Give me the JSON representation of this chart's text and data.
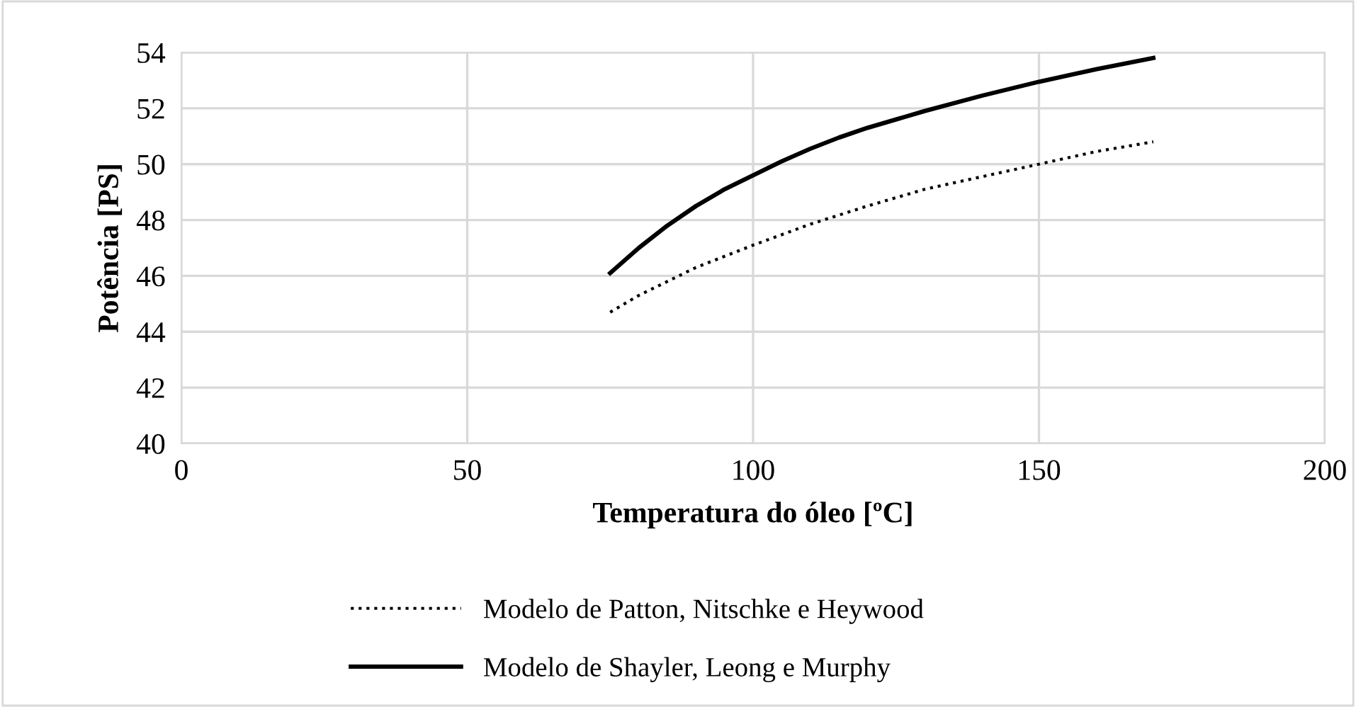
{
  "chart_data": {
    "type": "line",
    "xlabel": "Temperatura do óleo [ºC]",
    "ylabel": "Potência [PS]",
    "xlim": [
      0,
      200
    ],
    "xticks": [
      0,
      50,
      100,
      150,
      200
    ],
    "ylim": [
      40,
      54
    ],
    "yticks": [
      40,
      42,
      44,
      46,
      48,
      50,
      52,
      54
    ],
    "grid": true,
    "legend": "bottom",
    "marker": "none",
    "series": [
      {
        "name": "Modelo de Patton, Nitschke e Heywood",
        "color": "#000000",
        "line_style": "dotted",
        "x": [
          75,
          80,
          90,
          100,
          110,
          120,
          130,
          140,
          150,
          160,
          170
        ],
        "values": [
          44.7,
          45.3,
          46.3,
          47.1,
          47.85,
          48.5,
          49.1,
          49.55,
          50.0,
          50.45,
          50.8
        ]
      },
      {
        "name": "Modelo de Shayler, Leong e Murphy",
        "color": "#000000",
        "line_style": "solid",
        "x": [
          75,
          80,
          85,
          90,
          95,
          100,
          105,
          110,
          115,
          120,
          130,
          140,
          150,
          160,
          170
        ],
        "values": [
          46.1,
          47.0,
          47.8,
          48.5,
          49.1,
          49.6,
          50.1,
          50.55,
          50.95,
          51.3,
          51.9,
          52.45,
          52.95,
          53.4,
          53.8
        ]
      }
    ]
  }
}
